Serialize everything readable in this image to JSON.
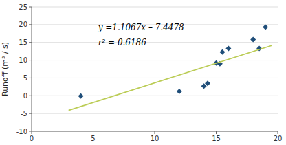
{
  "chart_data": {
    "type": "scatter",
    "ylabel": "Runoff (m³ / s)",
    "annotations": [
      "y =1.1067x – 7.4478",
      "r² = 0.6186"
    ],
    "series": [
      {
        "type": "scatter",
        "marker": "diamond",
        "color": "#1F4E79",
        "x": [
          4,
          12,
          14,
          14.3,
          15,
          15.3,
          15.5,
          16,
          18,
          18.5,
          19
        ],
        "values": [
          -0.1,
          1.2,
          2.7,
          3.5,
          9.2,
          9.0,
          12.3,
          13.3,
          15.8,
          13.3,
          19.3
        ]
      },
      {
        "type": "line",
        "color": "#BBCC55",
        "x": [
          3.0,
          19.5
        ],
        "values": [
          -4.1277,
          14.13285
        ]
      }
    ],
    "xlim": [
      0,
      20
    ],
    "ylim": [
      -10,
      25
    ],
    "xticks": [
      0,
      5,
      10,
      15,
      20
    ],
    "yticks": [
      -10,
      -5,
      0,
      5,
      10,
      15,
      20,
      25
    ],
    "grid": "y"
  }
}
